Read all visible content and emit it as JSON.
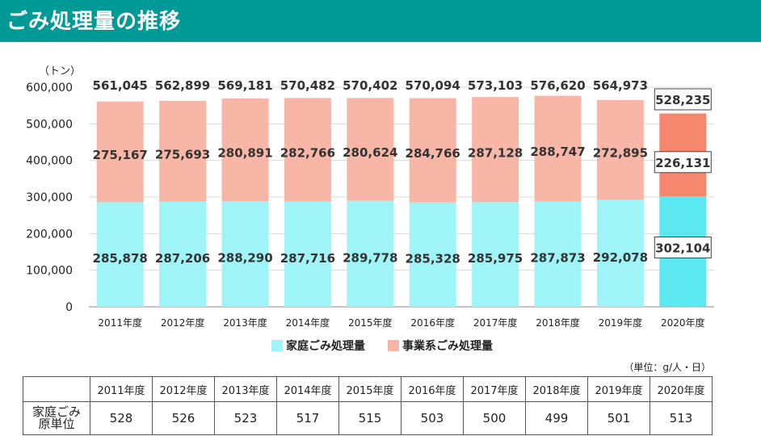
{
  "page": {
    "title": "ごみ処理量の推移"
  },
  "colors": {
    "household": "#9ef4f7",
    "business": "#f8b7a6",
    "household_highlight": "#5ce8f0",
    "business_highlight": "#f4876d",
    "header_bg": "#009a96"
  },
  "chart_data": {
    "type": "bar",
    "stacked": true,
    "ylabel": "（トン）",
    "ylim": [
      0,
      600000
    ],
    "yticks": [
      "0",
      "100,000",
      "200,000",
      "300,000",
      "400,000",
      "500,000",
      "600,000"
    ],
    "categories": [
      "2011年度",
      "2012年度",
      "2013年度",
      "2014年度",
      "2015年度",
      "2016年度",
      "2017年度",
      "2018年度",
      "2019年度",
      "2020年度"
    ],
    "series": [
      {
        "name": "家庭ごみ処理量",
        "values": [
          285878,
          287206,
          288290,
          287716,
          289778,
          285328,
          285975,
          287873,
          292078,
          302104
        ],
        "labels": [
          "285,878",
          "287,206",
          "288,290",
          "287,716",
          "289,778",
          "285,328",
          "285,975",
          "287,873",
          "292,078",
          "302,104"
        ]
      },
      {
        "name": "事業系ごみ処理量",
        "values": [
          275167,
          275693,
          280891,
          282766,
          280624,
          284766,
          287128,
          288747,
          272895,
          226131
        ],
        "labels": [
          "275,167",
          "275,693",
          "280,891",
          "282,766",
          "280,624",
          "284,766",
          "287,128",
          "288,747",
          "272,895",
          "226,131"
        ]
      }
    ],
    "totals": [
      561045,
      562899,
      569181,
      570482,
      570402,
      570094,
      573103,
      576620,
      564973,
      528235
    ],
    "total_labels": [
      "561,045",
      "562,899",
      "569,181",
      "570,482",
      "570,402",
      "570,094",
      "573,103",
      "576,620",
      "564,973",
      "528,235"
    ],
    "legend": [
      "家庭ごみ処理量",
      "事業系ごみ処理量"
    ],
    "legend_placement": "bottom",
    "grid": true,
    "highlight_category": "2020年度"
  },
  "table": {
    "unit_note": "（単位：g/人・日）",
    "row_label": "家庭ごみ\n原単位",
    "years": [
      "2011年度",
      "2012年度",
      "2013年度",
      "2014年度",
      "2015年度",
      "2016年度",
      "2017年度",
      "2018年度",
      "2019年度",
      "2020年度"
    ],
    "values": [
      "528",
      "526",
      "523",
      "517",
      "515",
      "503",
      "500",
      "499",
      "501",
      "513"
    ]
  }
}
